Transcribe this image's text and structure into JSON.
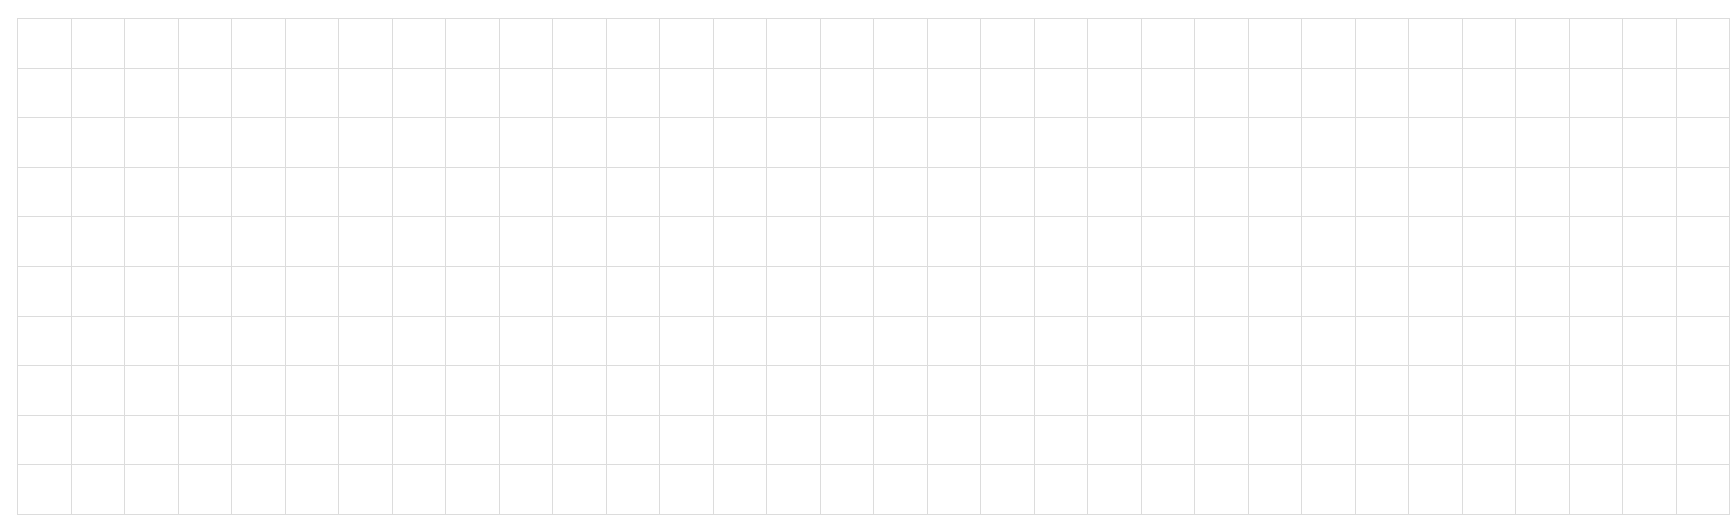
{
  "grid": {
    "rows": 10,
    "columns": 32,
    "line_color": "#dcdcdc",
    "cell_background": "#ffffff",
    "cells_text": ""
  }
}
